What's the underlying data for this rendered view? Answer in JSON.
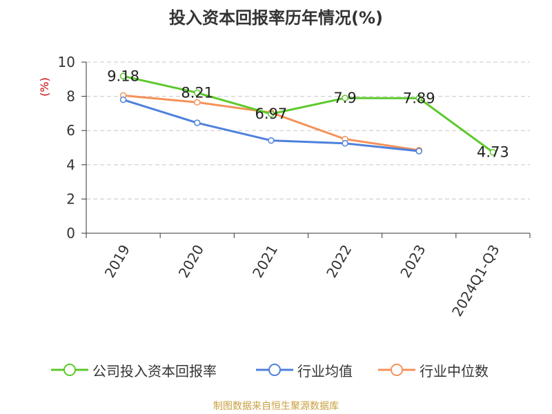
{
  "title": "投入资本回报率历年情况(%)",
  "source": "制图数据来自恒生聚源数据库",
  "colors": {
    "company": "#5cc92a",
    "industry_avg": "#4e80dc",
    "industry_median": "#f5925a",
    "ylabel": "#cc0000",
    "source": "#c8a040",
    "grid": "#c8c8c8",
    "axis": "#333333"
  },
  "chart_data": {
    "type": "line",
    "title": "投入资本回报率历年情况(%)",
    "xlabel": "",
    "ylabel": "(%)",
    "categories": [
      "2019",
      "2020",
      "2021",
      "2022",
      "2023",
      "2024Q1-Q3"
    ],
    "ylim": [
      0,
      10
    ],
    "yticks": [
      0,
      2,
      4,
      6,
      8,
      10
    ],
    "grid": "horizontal dashed",
    "legend": "bottom",
    "series": [
      {
        "name": "公司投入资本回报率",
        "color": "#5cc92a",
        "values": [
          9.18,
          8.21,
          6.97,
          7.9,
          7.89,
          4.73
        ],
        "labels": [
          "9.18",
          "8.21",
          "6.97",
          "7.9",
          "7.89",
          "4.73"
        ]
      },
      {
        "name": "行业均值",
        "color": "#4e80dc",
        "values": [
          7.8,
          6.45,
          5.42,
          5.25,
          4.8,
          null
        ]
      },
      {
        "name": "行业中位数",
        "color": "#f5925a",
        "values": [
          8.05,
          7.65,
          7.05,
          5.5,
          4.85,
          null
        ]
      }
    ]
  }
}
